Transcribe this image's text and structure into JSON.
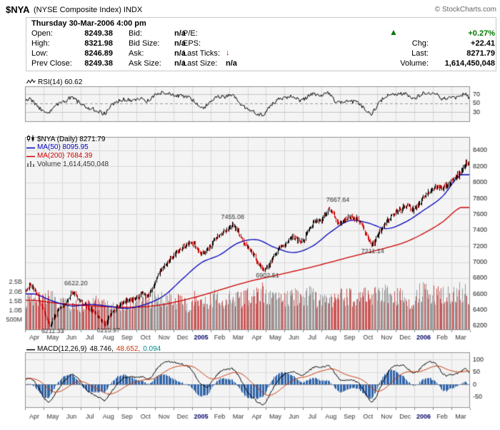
{
  "header": {
    "symbol": "$NYA",
    "symbol_desc": "(NYSE Composite Index) INDX",
    "copyright": "© StockCharts.com",
    "datetime": "Thursday 30-Mar-2006 4:00 pm",
    "quote": {
      "open_label": "Open:",
      "open": "8249.38",
      "high_label": "High:",
      "high": "8321.98",
      "low_label": "Low:",
      "low": "8246.89",
      "prev_close_label": "Prev Close:",
      "prev_close": "8249.38",
      "bid_label": "Bid:",
      "bid": "n/a",
      "bid_size_label": "Bid Size:",
      "bid_size": "n/a",
      "ask_label": "Ask:",
      "ask": "n/a",
      "ask_size_label": "Ask Size:",
      "ask_size": "n/a",
      "pe_label": "P/E:",
      "pe": "",
      "eps_label": "EPS:",
      "eps": "",
      "last_ticks_label": "Last Ticks:",
      "last_ticks_icon": "↓",
      "last_size_label": "Last Size:",
      "last_size": "n/a",
      "change_direction_icon": "▲",
      "pct_change": "+0.27%",
      "chg_label": "Chg:",
      "chg": "+22.41",
      "last_label": "Last:",
      "last": "8271.79",
      "volume_label": "Volume:",
      "volume": "1,614,450,048"
    }
  },
  "panels": {
    "rsi_label": "RSI(14) 60.62",
    "price_label": "$NYA (Daily) 8271.79",
    "ma50_label": "MA(50) 8095.95",
    "ma200_label": "MA(200) 7684.39",
    "volume_label": "Volume 1,614,450,048",
    "macd_label": "MACD(12,26,9)",
    "macd_value": "48.746,",
    "macd_signal_value": "48.652,",
    "macd_hist_value": "0.094"
  },
  "chart_data": {
    "type": "candlestick",
    "symbol": "$NYA",
    "period": "Daily",
    "title": "$NYA (Daily) 8271.79",
    "x_labels": [
      "Apr",
      "May",
      "Jun",
      "Jul",
      "Aug",
      "Sep",
      "Oct",
      "Nov",
      "Dec",
      "2005",
      "Feb",
      "Mar",
      "Apr",
      "May",
      "Jun",
      "Jul",
      "Aug",
      "Sep",
      "Oct",
      "Nov",
      "Dec",
      "2006",
      "Feb",
      "Mar"
    ],
    "year_label_indices": [
      9,
      21
    ],
    "price": {
      "ylim": [
        6146,
        8570
      ],
      "y_ticks": [
        8400,
        8200,
        8000,
        7800,
        7600,
        7400,
        7200,
        7000,
        6800,
        6600,
        6400,
        6200
      ],
      "last": 8271.79,
      "weekly_close": [
        6650,
        6700,
        6640,
        6500,
        6370,
        6211.33,
        6300,
        6400,
        6450,
        6520,
        6622.2,
        6560,
        6500,
        6440,
        6390,
        6350,
        6290,
        6215.97,
        6330,
        6400,
        6450,
        6500,
        6520,
        6530,
        6560,
        6600,
        6570,
        6650,
        6800,
        6900,
        6980,
        7050,
        7100,
        7160,
        7210,
        7250,
        7220,
        7150,
        7100,
        7160,
        7250,
        7310,
        7360,
        7390,
        7455.08,
        7410,
        7320,
        7210,
        7150,
        7060,
        6960,
        6902.51,
        6960,
        7060,
        7150,
        7200,
        7250,
        7300,
        7280,
        7250,
        7340,
        7440,
        7500,
        7520,
        7600,
        7667.64,
        7560,
        7500,
        7520,
        7560,
        7550,
        7530,
        7450,
        7340,
        7211.14,
        7300,
        7400,
        7500,
        7570,
        7620,
        7650,
        7700,
        7690,
        7660,
        7720,
        7800,
        7860,
        7900,
        7950,
        7910,
        7960,
        8010,
        8060,
        8120,
        8220,
        8271.79
      ],
      "ma50": [
        6600,
        6510,
        6450,
        6470,
        6445,
        6420,
        6470,
        6580,
        6790,
        6990,
        7090,
        7240,
        7280,
        7180,
        7120,
        7200,
        7380,
        7520,
        7490,
        7420,
        7500,
        7650,
        7820,
        8095.95
      ],
      "ma200": [
        6520,
        6490,
        6468,
        6452,
        6440,
        6434,
        6440,
        6470,
        6520,
        6580,
        6650,
        6720,
        6780,
        6832,
        6885,
        6940,
        7000,
        7062,
        7120,
        7180,
        7250,
        7360,
        7500,
        7684.39
      ]
    },
    "volume": {
      "ymax_billions": 2.5,
      "ticks": [
        {
          "label": "2.5B",
          "v": 2.5
        },
        {
          "label": "2.0B",
          "v": 2.0
        },
        {
          "label": "1.5B",
          "v": 1.5
        },
        {
          "label": "1.0B",
          "v": 1.0
        },
        {
          "label": "500M",
          "v": 0.5
        }
      ],
      "current": "1,614,450,048",
      "weekly": [
        1.4,
        1.5,
        1.4,
        1.6,
        1.7,
        1.8,
        1.5,
        1.3,
        1.3,
        1.4,
        1.3,
        1.2,
        1.3,
        1.4,
        1.5,
        1.4,
        1.4,
        1.5,
        1.3,
        1.2,
        1.3,
        1.3,
        1.4,
        1.4,
        1.5,
        1.6,
        1.5,
        1.6,
        1.6,
        1.7,
        1.5,
        1.6,
        1.5,
        1.6,
        1.4,
        1.2,
        1.6,
        1.7,
        1.6,
        1.5,
        1.6,
        1.7,
        1.6,
        1.6,
        1.7,
        1.6,
        1.6,
        1.7,
        1.8,
        1.9,
        2.0,
        1.9,
        1.7,
        1.6,
        1.6,
        1.5,
        1.6,
        1.7,
        1.8,
        1.6,
        1.7,
        1.8,
        1.6,
        1.6,
        1.6,
        1.5,
        1.6,
        1.7,
        1.7,
        1.8,
        1.7,
        1.8,
        1.9,
        2.0,
        1.9,
        1.8,
        1.8,
        1.9,
        1.8,
        1.7,
        1.7,
        1.6,
        1.5,
        1.3,
        1.8,
        2.0,
        1.9,
        1.8,
        1.9,
        1.8,
        1.8,
        1.9,
        1.9,
        2.0,
        2.1,
        1.61
      ]
    },
    "rsi": {
      "ylim": [
        8,
        88
      ],
      "y_ticks": [
        70,
        50,
        30
      ],
      "current": 60.62,
      "weekly": [
        55,
        58,
        50,
        40,
        32,
        28,
        38,
        48,
        52,
        58,
        64,
        55,
        48,
        42,
        38,
        35,
        30,
        27,
        40,
        50,
        55,
        58,
        57,
        56,
        58,
        62,
        55,
        62,
        70,
        74,
        72,
        70,
        68,
        67,
        66,
        64,
        55,
        45,
        40,
        48,
        58,
        63,
        66,
        65,
        70,
        62,
        50,
        40,
        35,
        30,
        26,
        25,
        38,
        50,
        58,
        62,
        64,
        66,
        60,
        55,
        62,
        68,
        70,
        68,
        70,
        72,
        58,
        50,
        52,
        56,
        54,
        52,
        42,
        32,
        27,
        40,
        55,
        65,
        70,
        72,
        70,
        72,
        66,
        60,
        65,
        72,
        74,
        72,
        70,
        58,
        62,
        66,
        62,
        66,
        72,
        60.62
      ]
    },
    "macd": {
      "ylim": [
        -95,
        130
      ],
      "y_ticks": [
        100,
        50,
        0,
        -50
      ],
      "current_macd": 48.746,
      "current_signal": 48.652,
      "current_hist": 0.094,
      "weekly": [
        20,
        25,
        10,
        -20,
        -55,
        -70,
        -50,
        -20,
        5,
        25,
        40,
        30,
        5,
        -20,
        -35,
        -45,
        -55,
        -65,
        -40,
        -15,
        10,
        25,
        30,
        30,
        28,
        30,
        22,
        30,
        60,
        80,
        90,
        92,
        88,
        85,
        78,
        70,
        45,
        15,
        -5,
        -10,
        15,
        40,
        55,
        60,
        65,
        50,
        20,
        -15,
        -40,
        -60,
        -75,
        -80,
        -50,
        -15,
        15,
        35,
        45,
        50,
        45,
        35,
        45,
        60,
        70,
        70,
        72,
        75,
        50,
        25,
        15,
        18,
        15,
        10,
        -15,
        -45,
        -70,
        -50,
        -10,
        30,
        60,
        75,
        78,
        75,
        60,
        45,
        55,
        75,
        88,
        90,
        80,
        50,
        35,
        40,
        42,
        50,
        62,
        48.746
      ]
    },
    "annotations": [
      {
        "text": "6211.33",
        "week": 5.5,
        "price": 6211.33,
        "dy": 4
      },
      {
        "text": "6622.20",
        "week": 10.5,
        "price": 6622.2,
        "dy": -10
      },
      {
        "text": "6215.97",
        "week": 17.5,
        "price": 6215.97,
        "dy": 4
      },
      {
        "text": "7455.08",
        "week": 44.3,
        "price": 7455.08,
        "dy": -10
      },
      {
        "text": "6902.51",
        "week": 51.8,
        "price": 6902.51,
        "dy": 4
      },
      {
        "text": "7667.64",
        "week": 67.0,
        "price": 7667.64,
        "dy": -10
      },
      {
        "text": "7211.14",
        "week": 74.5,
        "price": 7211.14,
        "dy": 4
      }
    ],
    "colors": {
      "candle_up": "#000000",
      "candle_down": "#cc0000",
      "ma50": "#0000bb",
      "ma200": "#cc0000",
      "volume_up": "#9a9a9a",
      "volume_down": "#cc5555",
      "rsi_line": "#000000",
      "macd_line": "#000000",
      "macd_signal": "#cc3300",
      "macd_hist": "#3366aa",
      "grid": "#d9d9d9",
      "panel_bg": "#f4f4f4",
      "panel_border": "#909090",
      "year_label": "#000066",
      "gain_green": "#007700",
      "loss_red": "#cc0000"
    }
  }
}
